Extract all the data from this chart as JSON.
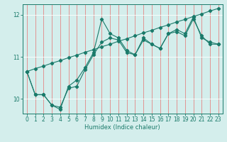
{
  "xlabel": "Humidex (Indice chaleur)",
  "bg_color": "#d4eeec",
  "line_color": "#1a7a6a",
  "xlim": [
    -0.5,
    23.5
  ],
  "ylim": [
    9.65,
    12.25
  ],
  "yticks": [
    10,
    11,
    12
  ],
  "xticks": [
    0,
    1,
    2,
    3,
    4,
    5,
    6,
    7,
    8,
    9,
    10,
    11,
    12,
    13,
    14,
    15,
    16,
    17,
    18,
    19,
    20,
    21,
    22,
    23
  ],
  "series_jagged": [
    10.65,
    10.1,
    10.1,
    9.85,
    9.75,
    10.3,
    10.45,
    10.75,
    11.1,
    11.9,
    11.55,
    11.45,
    11.15,
    11.05,
    11.45,
    11.3,
    11.2,
    11.55,
    11.65,
    11.55,
    11.95,
    11.45,
    11.35,
    11.3
  ],
  "series_straight": [
    10.65,
    10.72,
    10.78,
    10.85,
    10.91,
    10.98,
    11.04,
    11.11,
    11.17,
    11.24,
    11.3,
    11.37,
    11.43,
    11.5,
    11.57,
    11.63,
    11.7,
    11.76,
    11.83,
    11.89,
    11.96,
    12.02,
    12.09,
    12.15
  ],
  "series_mid": [
    10.65,
    10.1,
    10.1,
    9.85,
    9.8,
    10.25,
    10.3,
    10.7,
    11.05,
    11.35,
    11.45,
    11.4,
    11.1,
    11.05,
    11.4,
    11.3,
    11.2,
    11.55,
    11.6,
    11.5,
    11.9,
    11.5,
    11.3,
    11.3
  ]
}
